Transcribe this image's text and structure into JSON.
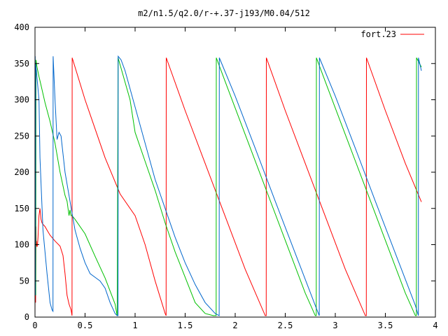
{
  "chart_data": {
    "type": "line",
    "title": "m2/n1.5/q2.0/r-+.37-j193/M0.04/512",
    "xlabel": "",
    "ylabel": "",
    "xlim": [
      0,
      4
    ],
    "ylim": [
      0,
      400
    ],
    "xticks": [
      0,
      0.5,
      1,
      1.5,
      2,
      2.5,
      3,
      3.5,
      4
    ],
    "xtick_labels": [
      "0",
      "0.5",
      "1",
      "1.5",
      "2",
      "2.5",
      "3",
      "3.5",
      "4"
    ],
    "yticks": [
      0,
      50,
      100,
      150,
      200,
      250,
      300,
      350,
      400
    ],
    "ytick_labels": [
      "0",
      "50",
      "100",
      "150",
      "200",
      "250",
      "300",
      "350",
      "400"
    ],
    "grid": false,
    "legend_position": "top-right",
    "legend": [
      {
        "label": "fort.23",
        "color": "#ff0000"
      }
    ],
    "series": [
      {
        "name": "fort.23",
        "color": "#ff0000",
        "x": [
          0.0,
          0.003,
          0.006,
          0.01,
          0.012,
          0.015,
          0.018,
          0.02,
          0.025,
          0.03,
          0.04,
          0.05,
          0.06,
          0.07,
          0.08,
          0.1,
          0.12,
          0.15,
          0.2,
          0.25,
          0.28,
          0.3,
          0.32,
          0.34,
          0.36,
          0.37,
          0.371,
          0.5,
          0.7,
          0.85,
          1.0,
          1.1,
          1.2,
          1.3,
          1.31,
          1.311,
          1.5,
          1.7,
          1.9,
          2.1,
          2.3,
          2.31,
          2.311,
          2.5,
          2.7,
          2.9,
          3.1,
          3.3,
          3.31,
          3.311,
          3.5,
          3.7,
          3.86
        ],
        "y": [
          5,
          120,
          20,
          125,
          98,
          105,
          100,
          97,
          100,
          110,
          140,
          150,
          135,
          130,
          128,
          125,
          120,
          113,
          105,
          98,
          85,
          60,
          30,
          18,
          10,
          2,
          358,
          300,
          220,
          170,
          140,
          100,
          50,
          5,
          2,
          358,
          285,
          212,
          139,
          66,
          2,
          2,
          358,
          285,
          212,
          139,
          66,
          2,
          2,
          358,
          285,
          212,
          159
        ]
      },
      {
        "name": "",
        "color": "#00c000",
        "x": [
          0.0,
          0.005,
          0.008,
          0.01,
          0.02,
          0.04,
          0.06,
          0.1,
          0.15,
          0.2,
          0.25,
          0.3,
          0.32,
          0.33,
          0.34,
          0.35,
          0.36,
          0.37,
          0.4,
          0.5,
          0.6,
          0.7,
          0.8,
          0.82,
          0.821,
          0.83,
          0.95,
          1.0,
          1.1,
          1.2,
          1.3,
          1.4,
          1.5,
          1.6,
          1.7,
          1.78,
          1.8,
          1.81,
          1.811,
          1.9,
          2.1,
          2.3,
          2.5,
          2.7,
          2.8,
          2.81,
          2.811,
          2.9,
          3.1,
          3.3,
          3.5,
          3.7,
          3.8,
          3.81,
          3.811,
          3.86
        ],
        "y": [
          30,
          350,
          30,
          355,
          345,
          332,
          320,
          296,
          270,
          240,
          200,
          168,
          160,
          150,
          140,
          148,
          140,
          140,
          135,
          115,
          84,
          54,
          18,
          2,
          2,
          358,
          300,
          255,
          215,
          175,
          130,
          90,
          55,
          20,
          5,
          2,
          2,
          2,
          358,
          325,
          252,
          179,
          106,
          33,
          2,
          2,
          358,
          325,
          252,
          179,
          106,
          33,
          2,
          2,
          358,
          345
        ]
      },
      {
        "name": "",
        "color": "#0066cc",
        "x": [
          0.0,
          0.002,
          0.004,
          0.006,
          0.01,
          0.015,
          0.02,
          0.04,
          0.05,
          0.08,
          0.12,
          0.15,
          0.17,
          0.18,
          0.181,
          0.2,
          0.22,
          0.24,
          0.26,
          0.3,
          0.35,
          0.4,
          0.45,
          0.5,
          0.55,
          0.6,
          0.65,
          0.7,
          0.75,
          0.8,
          0.82,
          0.83,
          0.831,
          0.86,
          0.9,
          1.0,
          1.1,
          1.2,
          1.3,
          1.4,
          1.5,
          1.6,
          1.7,
          1.8,
          1.84,
          1.841,
          2.0,
          2.2,
          2.4,
          2.6,
          2.8,
          2.84,
          2.841,
          3.0,
          3.2,
          3.4,
          3.6,
          3.8,
          3.83,
          3.831,
          3.86
        ],
        "y": [
          20,
          360,
          30,
          350,
          345,
          340,
          330,
          300,
          220,
          120,
          60,
          20,
          10,
          8,
          360,
          300,
          245,
          255,
          250,
          200,
          160,
          120,
          95,
          75,
          60,
          55,
          50,
          40,
          20,
          5,
          2,
          2,
          360,
          355,
          340,
          290,
          240,
          190,
          150,
          110,
          75,
          45,
          20,
          5,
          2,
          358,
          305,
          233,
          160,
          88,
          16,
          2,
          358,
          305,
          233,
          160,
          88,
          16,
          2,
          358,
          340
        ]
      }
    ]
  }
}
